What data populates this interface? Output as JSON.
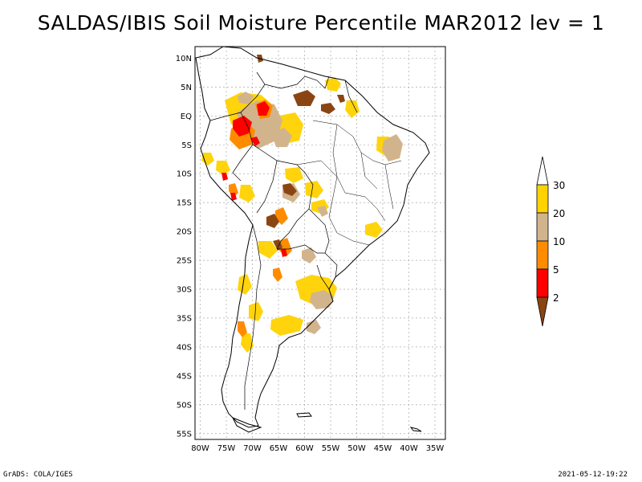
{
  "title": "SALDAS/IBIS Soil Moisture Percentile MAR2012 lev = 1",
  "axes": {
    "lat_labels": [
      "10N",
      "5N",
      "EQ",
      "5S",
      "10S",
      "15S",
      "20S",
      "25S",
      "30S",
      "35S",
      "40S",
      "45S",
      "50S",
      "55S"
    ],
    "lon_labels": [
      "80W",
      "75W",
      "70W",
      "65W",
      "60W",
      "55W",
      "50W",
      "45W",
      "40W",
      "35W"
    ],
    "lat_range": [
      -56,
      12
    ],
    "lon_range": [
      -81,
      -33
    ],
    "grid": true
  },
  "legend": {
    "labels": [
      "30",
      "20",
      "10",
      "5",
      "2"
    ],
    "colors": {
      "above_30": "#ffffff",
      "20_30": "#ffd200",
      "10_20": "#d2b48c",
      "5_10": "#ff8c00",
      "2_5": "#ff0000",
      "below_2": "#8b4513"
    }
  },
  "footer": {
    "left": "GrADS: COLA/IGES",
    "right": "2021-05-12-19:22"
  }
}
